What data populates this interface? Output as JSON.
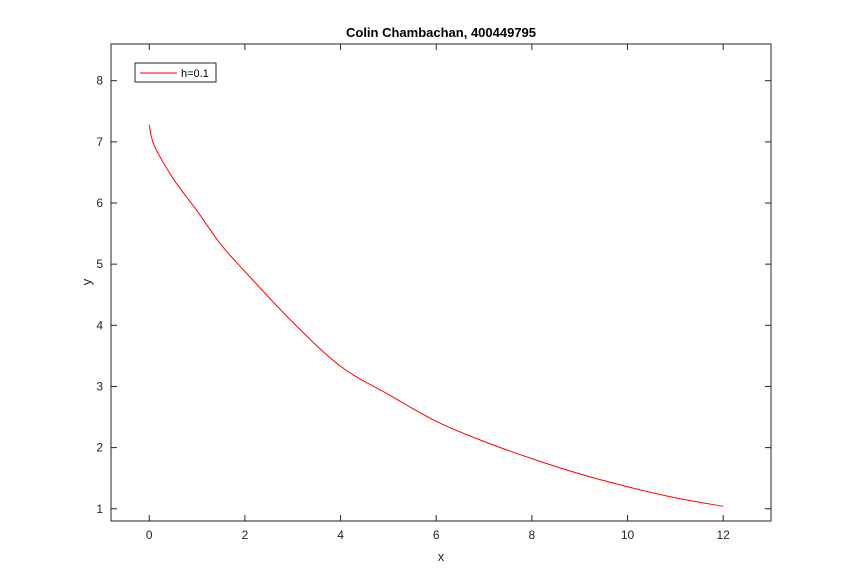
{
  "chart_data": {
    "type": "line",
    "title": "Colin Chambachan, 400449795",
    "xlabel": "x",
    "ylabel": "y",
    "xlim": [
      -0.8,
      13
    ],
    "ylim": [
      0.8,
      8.6
    ],
    "xticks": [
      0,
      2,
      4,
      6,
      8,
      10,
      12
    ],
    "yticks": [
      1,
      2,
      3,
      4,
      5,
      6,
      7,
      8
    ],
    "grid": false,
    "legend_position": "top-left",
    "series": [
      {
        "name": "h=0.1",
        "color": "#ff0000",
        "x": [
          0,
          0.1,
          0.5,
          1,
          1.5,
          2,
          3,
          4,
          5,
          6,
          7,
          8,
          9,
          10,
          11,
          12
        ],
        "y": [
          7.28,
          6.95,
          6.4,
          5.87,
          5.32,
          4.88,
          4.05,
          3.33,
          2.87,
          2.43,
          2.1,
          1.82,
          1.57,
          1.36,
          1.18,
          1.04
        ]
      }
    ]
  }
}
